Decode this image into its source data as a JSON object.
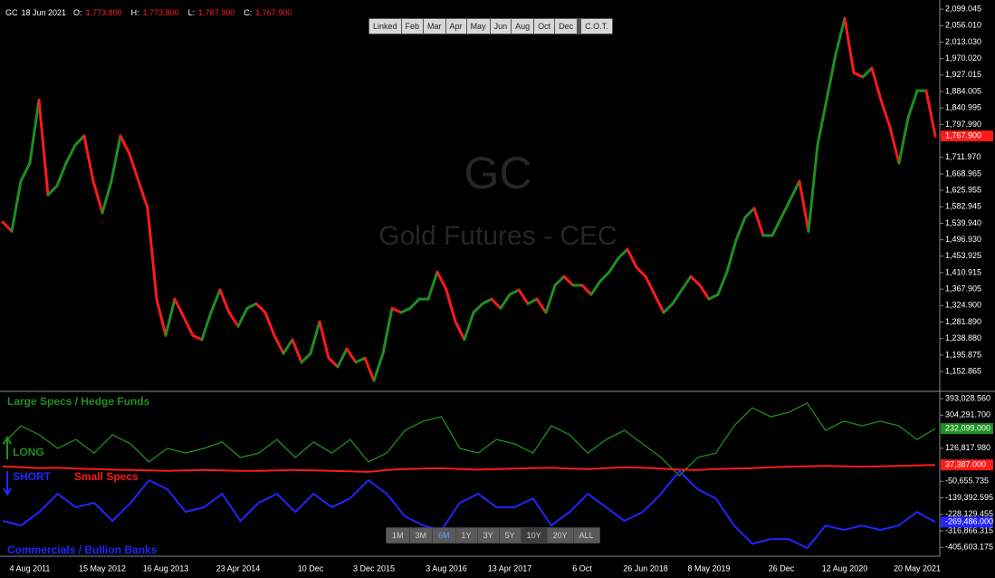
{
  "header": {
    "symbol": "GC",
    "date": "18 Jun 2021",
    "fields": [
      {
        "key": "O:",
        "value": "1,773.800"
      },
      {
        "key": "H:",
        "value": "1,773.800"
      },
      {
        "key": "L:",
        "value": "1,767.900"
      },
      {
        "key": "C:",
        "value": "1,767.900"
      }
    ]
  },
  "toolbar": [
    "Linked",
    "Feb",
    "Mar",
    "Apr",
    "May",
    "Jun",
    "Aug",
    "Oct",
    "Dec",
    "C.O.T."
  ],
  "range_buttons": [
    "1M",
    "3M",
    "6M",
    "1Y",
    "3Y",
    "5Y",
    "10Y",
    "20Y",
    "ALL"
  ],
  "chart_data": [
    {
      "type": "line",
      "watermark_symbol": "GC",
      "watermark_name": "Gold Futures - CEC",
      "categories": [
        null,
        null,
        null,
        "4 Aug 2011",
        null,
        null,
        null,
        null,
        null,
        null,
        null,
        "15 May 2012",
        null,
        null,
        null,
        null,
        null,
        null,
        "16 Aug 2013",
        null,
        null,
        null,
        null,
        null,
        null,
        null,
        "23 Apr 2014",
        null,
        null,
        null,
        null,
        null,
        null,
        null,
        "10 Dec",
        null,
        null,
        null,
        null,
        null,
        null,
        "3 Dec 2015",
        null,
        null,
        null,
        null,
        null,
        null,
        null,
        "3 Aug 2016",
        null,
        null,
        null,
        null,
        null,
        null,
        "13 Apr 2017",
        null,
        null,
        null,
        null,
        null,
        null,
        null,
        "6 Oct",
        null,
        null,
        null,
        null,
        null,
        null,
        "26 Jun 2018",
        null,
        null,
        null,
        null,
        null,
        null,
        "8 May 2019",
        null,
        null,
        null,
        null,
        null,
        null,
        null,
        "26 Dec",
        null,
        null,
        null,
        null,
        null,
        null,
        "12 Aug 2020",
        null,
        null,
        null,
        null,
        null,
        null,
        null,
        "20 May 2021",
        null,
        null
      ],
      "values": [
        1543,
        1519,
        1650,
        1697,
        1862,
        1614,
        1638,
        1697,
        1744,
        1768,
        1650,
        1567,
        1650,
        1768,
        1721,
        1650,
        1579,
        1342,
        1247,
        1342,
        1295,
        1247,
        1236,
        1307,
        1366,
        1307,
        1271,
        1318,
        1330,
        1307,
        1247,
        1200,
        1236,
        1177,
        1200,
        1283,
        1188,
        1165,
        1212,
        1177,
        1188,
        1129,
        1200,
        1318,
        1307,
        1318,
        1342,
        1342,
        1413,
        1366,
        1283,
        1236,
        1307,
        1330,
        1342,
        1318,
        1354,
        1366,
        1330,
        1342,
        1307,
        1378,
        1401,
        1378,
        1378,
        1354,
        1389,
        1413,
        1449,
        1472,
        1425,
        1401,
        1354,
        1307,
        1330,
        1366,
        1401,
        1378,
        1342,
        1354,
        1413,
        1496,
        1555,
        1579,
        1508,
        1508,
        1555,
        1602,
        1650,
        1519,
        1744,
        1862,
        1981,
        2075,
        1933,
        1922,
        1945,
        1862,
        1791,
        1697,
        1815,
        1886,
        1886,
        1767.9
      ],
      "last_value_label": "1,767.900",
      "up_color": "#1f8f1f",
      "down_color": "#ff1a1a",
      "ylim": [
        1101,
        2123
      ],
      "yticks": [
        {
          "value": 2099.045,
          "label": "2,099.045"
        },
        {
          "value": 2056.01,
          "label": "2,056.010"
        },
        {
          "value": 2013.03,
          "label": "2,013.030"
        },
        {
          "value": 1970.02,
          "label": "1,970.020"
        },
        {
          "value": 1927.015,
          "label": "1,927.015"
        },
        {
          "value": 1884.005,
          "label": "1,884.005"
        },
        {
          "value": 1840.995,
          "label": "1,840.995"
        },
        {
          "value": 1797.99,
          "label": "1,797.990"
        },
        {
          "value": 1711.97,
          "label": "1,711.970"
        },
        {
          "value": 1668.965,
          "label": "1,668.965"
        },
        {
          "value": 1625.955,
          "label": "1,625.955"
        },
        {
          "value": 1582.945,
          "label": "1,582.945"
        },
        {
          "value": 1539.94,
          "label": "1,539.940"
        },
        {
          "value": 1496.93,
          "label": "1,496.930"
        },
        {
          "value": 1453.925,
          "label": "1,453.925"
        },
        {
          "value": 1410.915,
          "label": "1,410.915"
        },
        {
          "value": 1367.905,
          "label": "1,367.905"
        },
        {
          "value": 1324.9,
          "label": "1,324.900"
        },
        {
          "value": 1281.89,
          "label": "1,281.890"
        },
        {
          "value": 1238.88,
          "label": "1,238.880"
        },
        {
          "value": 1195.875,
          "label": "1,195.875"
        },
        {
          "value": 1152.865,
          "label": "1,152.865"
        }
      ]
    },
    {
      "type": "line",
      "annotations": [
        "LONG",
        "SHORT"
      ],
      "series": [
        {
          "name": "Large Specs / Hedge Funds",
          "color": "#1f8f1f",
          "last_value_label": "232,099.000",
          "values": [
            150000,
            247000,
            199000,
            126000,
            174000,
            101000,
            199000,
            150000,
            53000,
            126000,
            101000,
            126000,
            160000,
            77000,
            101000,
            174000,
            77000,
            160000,
            101000,
            174000,
            53000,
            101000,
            223000,
            272000,
            296000,
            126000,
            101000,
            174000,
            150000,
            101000,
            247000,
            199000,
            101000,
            174000,
            223000,
            150000,
            77000,
            -20000,
            77000,
            101000,
            247000,
            344000,
            296000,
            320000,
            369000,
            223000,
            272000,
            247000,
            272000,
            247000,
            174000,
            232099
          ]
        },
        {
          "name": "Small Specs",
          "color": "#ff1a1a",
          "last_value_label": "37,387.000",
          "values": [
            30000,
            25000,
            20000,
            22000,
            18000,
            15000,
            12000,
            10000,
            8000,
            5000,
            8000,
            10000,
            8000,
            5000,
            5000,
            8000,
            10000,
            8000,
            5000,
            3000,
            0,
            10000,
            15000,
            18000,
            20000,
            15000,
            12000,
            15000,
            18000,
            20000,
            22000,
            18000,
            15000,
            20000,
            25000,
            22000,
            18000,
            12000,
            10000,
            15000,
            18000,
            20000,
            25000,
            28000,
            30000,
            32000,
            30000,
            28000,
            30000,
            32000,
            35000,
            37387
          ]
        },
        {
          "name": "Commercials / Bullion Banks",
          "color": "#2424ff",
          "last_value_label": "-269,486.000",
          "values": [
            -263000,
            -288000,
            -215000,
            -118000,
            -190000,
            -166000,
            -263000,
            -166000,
            -45000,
            -93000,
            -215000,
            -190000,
            -118000,
            -263000,
            -166000,
            -118000,
            -215000,
            -118000,
            -190000,
            -142000,
            -45000,
            -118000,
            -239000,
            -288000,
            -312000,
            -166000,
            -118000,
            -190000,
            -190000,
            -142000,
            -288000,
            -215000,
            -118000,
            -190000,
            -263000,
            -215000,
            -118000,
            4000,
            -93000,
            -142000,
            -288000,
            -385000,
            -361000,
            -361000,
            -409000,
            -288000,
            -312000,
            -288000,
            -312000,
            -288000,
            -215000,
            -269486
          ]
        }
      ],
      "ylim": [
        -443000,
        427000
      ],
      "yticks": [
        {
          "value": 393028.56,
          "label": "393,028.560"
        },
        {
          "value": 304291.7,
          "label": "304,291.700"
        },
        {
          "value": 126817.98,
          "label": "126,817.980"
        },
        {
          "value": -50655.735,
          "label": "-50,655.735"
        },
        {
          "value": -139392.595,
          "label": "-139,392.595"
        },
        {
          "value": -228129.455,
          "label": "-228,129.455"
        },
        {
          "value": -316866.315,
          "label": "-316,866.315"
        },
        {
          "value": -405603.175,
          "label": "-405,603.175"
        }
      ]
    }
  ]
}
